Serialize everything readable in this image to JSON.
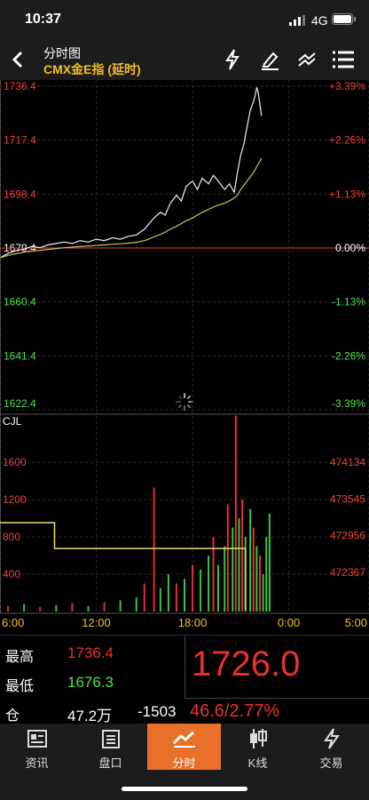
{
  "status_bar": {
    "time": "10:37",
    "network": "4G"
  },
  "header": {
    "title": "分时图",
    "subtitle": "CMX金E指 (延时)"
  },
  "chart_data": [
    {
      "type": "line",
      "reference_line": 1679.4,
      "x": [
        0,
        0.5,
        1,
        1.5,
        2,
        2.5,
        3,
        3.5,
        4,
        4.5,
        5,
        5.5,
        6,
        6.5,
        7,
        7.5,
        8,
        8.5,
        9,
        9.3,
        9.6,
        10,
        10.3,
        10.6,
        11,
        11.3,
        11.6,
        12,
        12.3,
        12.6,
        13,
        13.3,
        13.6,
        14,
        14.3,
        14.6,
        14.8,
        15,
        15.2,
        15.4,
        15.6,
        15.8,
        15.9,
        16,
        16.1,
        16.2,
        16.3
      ],
      "xlim": [
        0,
        23
      ],
      "ylim": [
        1622.4,
        1736.4
      ],
      "yticks": [
        1736.4,
        1717.4,
        1698.4,
        1679.4,
        1660.4,
        1641.4,
        1622.4
      ],
      "y2lim": [
        -3.39,
        3.39
      ],
      "y2ticks": [
        {
          "value": 3.39,
          "label": "+3.39%"
        },
        {
          "value": 2.26,
          "label": "+2.26%"
        },
        {
          "value": 1.13,
          "label": "+1.13%"
        },
        {
          "value": 0,
          "label": "0.00%"
        },
        {
          "value": -1.13,
          "label": "-1.13%"
        },
        {
          "value": -2.26,
          "label": "-2.26%"
        },
        {
          "value": -3.39,
          "label": "-3.39%"
        }
      ],
      "series": [
        {
          "color": "#f0f0f0",
          "values": [
            1676,
            1677.5,
            1678.5,
            1679,
            1680,
            1679.5,
            1680.5,
            1681,
            1681.5,
            1681,
            1682,
            1681.5,
            1682.5,
            1682,
            1683,
            1682.5,
            1683.5,
            1684,
            1686,
            1688,
            1690,
            1692,
            1691,
            1695,
            1698,
            1696,
            1701,
            1703,
            1700,
            1704,
            1702,
            1705,
            1703,
            1700,
            1702,
            1699,
            1706,
            1712,
            1716,
            1722,
            1728,
            1731,
            1733,
            1736,
            1734,
            1730,
            1726
          ]
        },
        {
          "color": "#c8c850",
          "values": [
            1676,
            1676.8,
            1677.4,
            1677.9,
            1678.3,
            1678.6,
            1678.9,
            1679.2,
            1679.5,
            1679.7,
            1679.9,
            1680.1,
            1680.3,
            1680.5,
            1680.7,
            1680.9,
            1681.1,
            1681.4,
            1682,
            1682.6,
            1683.3,
            1684.2,
            1685,
            1686,
            1687,
            1688,
            1689,
            1690,
            1691,
            1692,
            1693,
            1693.8,
            1694.5,
            1695.2,
            1696,
            1697,
            1698,
            1700,
            1701.5,
            1703,
            1704.5,
            1706,
            1707,
            1708,
            1709,
            1710,
            1711
          ]
        }
      ]
    },
    {
      "type": "bar",
      "title": "CJL",
      "xlim": [
        0,
        23
      ],
      "ylim": [
        0,
        2220
      ],
      "yticks": [
        400,
        800,
        1200,
        1600
      ],
      "y2lim": [
        471740,
        475060
      ],
      "y2ticks": [
        474134,
        473545,
        472956,
        472367
      ],
      "xticks": [
        {
          "value": 0,
          "label": "6:00"
        },
        {
          "value": 6,
          "label": "12:00"
        },
        {
          "value": 12,
          "label": "18:00"
        },
        {
          "value": 18,
          "label": "0:00"
        },
        {
          "value": 23,
          "label": "5:00"
        }
      ],
      "series": [
        {
          "type": "bar",
          "x": [
            0.5,
            1.5,
            2.5,
            3.5,
            4.5,
            5.5,
            6.5,
            7.5,
            8.5,
            9,
            9.6,
            10,
            10.5,
            11,
            11.5,
            12,
            12.5,
            13,
            13.3,
            13.6,
            14,
            14.2,
            14.5,
            14.7,
            14.9,
            15.1,
            15.3,
            15.6,
            15.8,
            16,
            16.2,
            16.4,
            16.6,
            16.8
          ],
          "values": [
            60,
            80,
            50,
            70,
            90,
            60,
            100,
            120,
            150,
            300,
            1330,
            250,
            400,
            300,
            350,
            500,
            450,
            600,
            800,
            500,
            700,
            1150,
            900,
            2100,
            1000,
            1200,
            800,
            1100,
            900,
            700,
            600,
            400,
            800,
            1050
          ],
          "colors": [
            "#e03030",
            "#40c040",
            "#e03030",
            "#40c040",
            "#e03030",
            "#40c040",
            "#e03030",
            "#40c040",
            "#40c040",
            "#e03030",
            "#e03030",
            "#40c040",
            "#40c040",
            "#e03030",
            "#40c040",
            "#e03030",
            "#40c040",
            "#40c040",
            "#e03030",
            "#40c040",
            "#40c040",
            "#e03030",
            "#40c040",
            "#e03030",
            "#40c040",
            "#e03030",
            "#40c040",
            "#40c040",
            "#e03030",
            "#40c040",
            "#e03030",
            "#40c040",
            "#40c040",
            "#40c040"
          ]
        },
        {
          "type": "line",
          "axis": "y2",
          "color": "#e8e070",
          "x": [
            0,
            3.4,
            3.4,
            15.3,
            15.3
          ],
          "values": [
            473165,
            473165,
            472752,
            472752,
            471760
          ]
        }
      ]
    }
  ],
  "quote": {
    "high_label": "最高",
    "high": "1736.4",
    "low_label": "最低",
    "low": "1676.3",
    "oi_label": "仓",
    "oi": "47.2万",
    "oi_change": "-1503",
    "price": "1726.0",
    "change": "46.6/2.77%"
  },
  "tabs": {
    "active": 2,
    "labels": [
      "资讯",
      "盘口",
      "分时",
      "K线",
      "交易"
    ]
  }
}
